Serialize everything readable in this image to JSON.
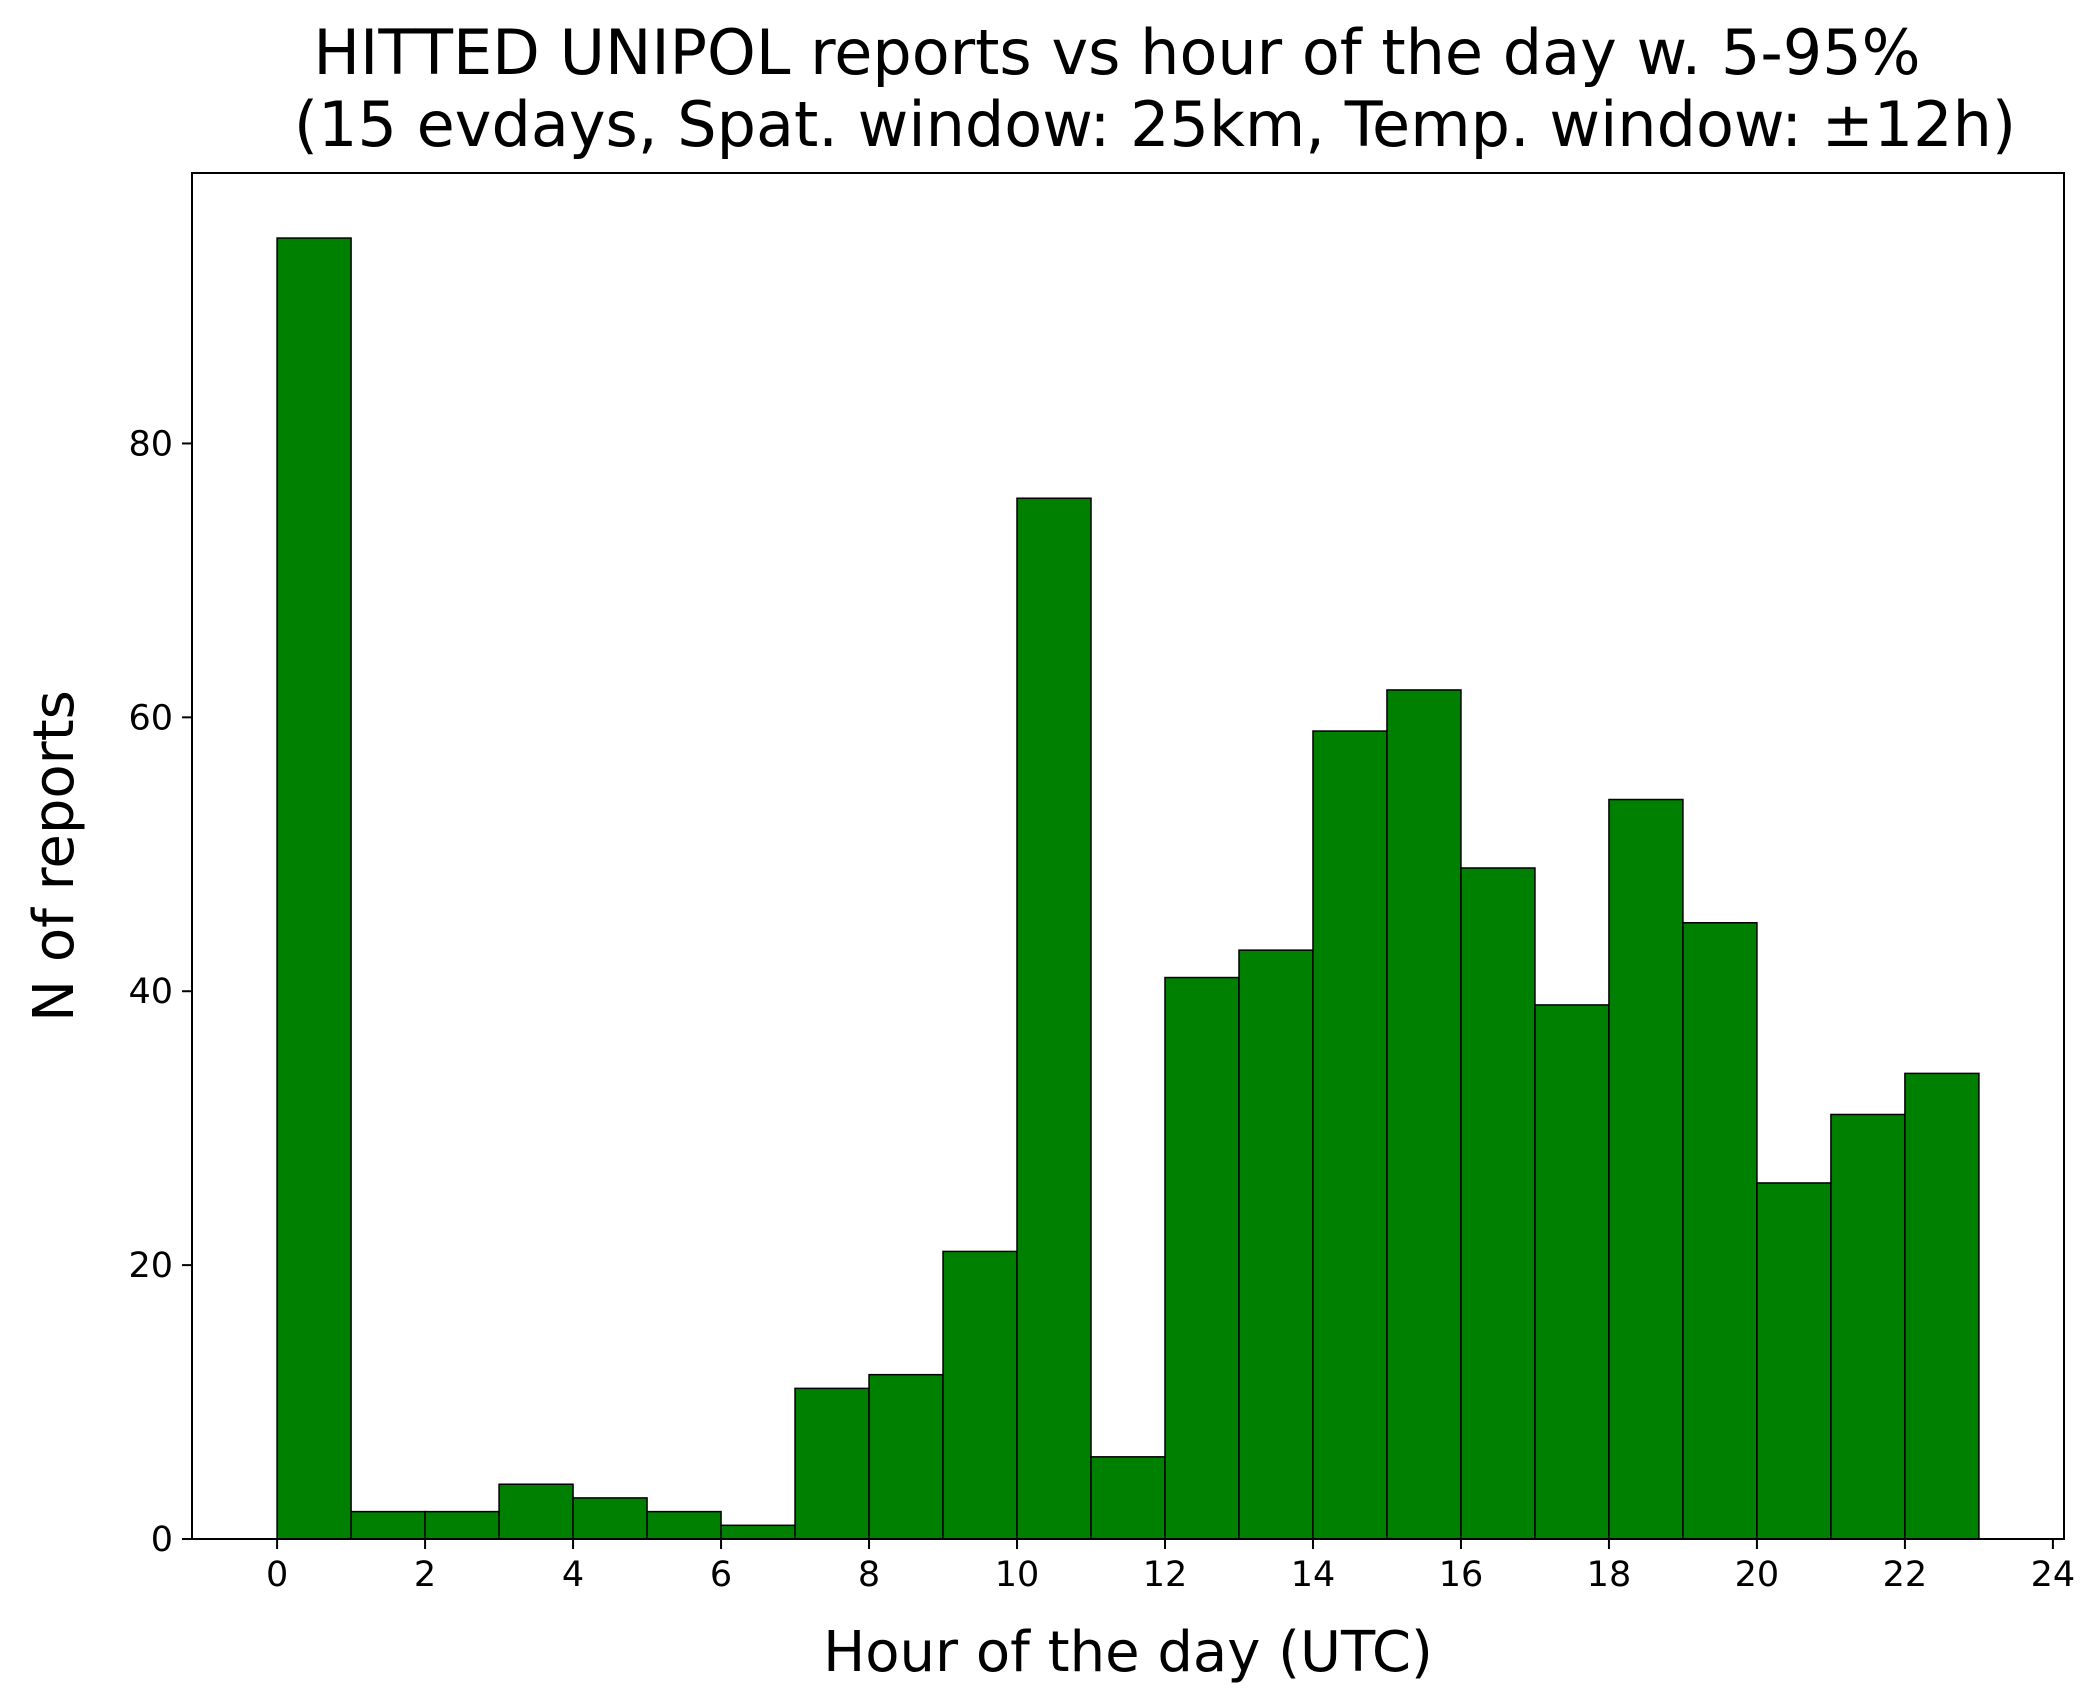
{
  "chart_data": {
    "type": "bar",
    "title": "HITTED UNIPOL reports vs hour of the day w. 5-95%",
    "subtitle": "(15 evdays, Spat. window: 25km, Temp. window: ±12h)",
    "xlabel": "Hour of the day (UTC)",
    "ylabel": "N of reports",
    "bin_edges": [
      0,
      1,
      2,
      3,
      4,
      5,
      6,
      7,
      8,
      9,
      10,
      11,
      12,
      13,
      14,
      15,
      16,
      17,
      18,
      19,
      20,
      21,
      22,
      23
    ],
    "values": [
      95,
      2,
      2,
      4,
      3,
      2,
      1,
      11,
      12,
      21,
      76,
      6,
      41,
      43,
      59,
      62,
      49,
      39,
      54,
      45,
      26,
      31,
      34
    ],
    "xlim": [
      -1.15,
      24.15
    ],
    "ylim": [
      0,
      99.75
    ],
    "xticks": [
      0,
      2,
      4,
      6,
      8,
      10,
      12,
      14,
      16,
      18,
      20,
      22,
      24
    ],
    "yticks": [
      0,
      20,
      40,
      60,
      80
    ],
    "grid": false,
    "legend": "none",
    "bar_color": "#008000",
    "edge_color": "#000000"
  }
}
